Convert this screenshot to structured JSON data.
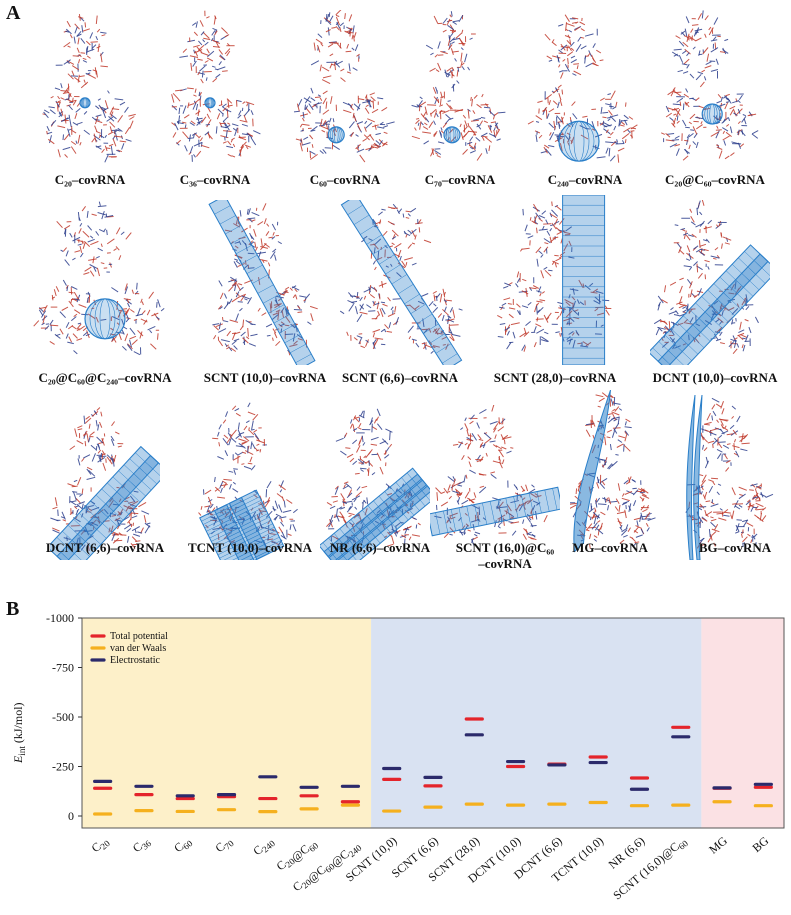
{
  "figure": {
    "panel_a_label": "A",
    "panel_b_label": "B",
    "panel_a": {
      "cells": [
        {
          "caption": "C₂₀–covRNA",
          "molecule": "fullerene-small"
        },
        {
          "caption": "C₃₆–covRNA",
          "molecule": "fullerene-small"
        },
        {
          "caption": "C₆₀–covRNA",
          "molecule": "fullerene-medium"
        },
        {
          "caption": "C₇₀–covRNA",
          "molecule": "fullerene-medium"
        },
        {
          "caption": "C₂₄₀–covRNA",
          "molecule": "fullerene-large"
        },
        {
          "caption": "C₂₀@C₆₀–covRNA",
          "molecule": "onion-fullerene"
        },
        {
          "caption": "C₂₀@C₆₀@C₂₄₀–covRNA",
          "molecule": "onion-fullerene-large"
        },
        {
          "caption": "SCNT (10,0)–covRNA",
          "molecule": "nanotube-diagonal"
        },
        {
          "caption": "SCNT (6,6)–covRNA",
          "molecule": "nanotube-diagonal"
        },
        {
          "caption": "SCNT (28,0)–covRNA",
          "molecule": "nanotube-vertical"
        },
        {
          "caption": "DCNT (10,0)–covRNA",
          "molecule": "nanotube-double"
        },
        {
          "caption": "DCNT (6,6)–covRNA",
          "molecule": "nanotube-double"
        },
        {
          "caption": "TCNT (10,0)–covRNA",
          "molecule": "nanotube-triple"
        },
        {
          "caption": "NR (6,6)–covRNA",
          "molecule": "nanorope"
        },
        {
          "caption": "SCNT (16,0)@C₆₀",
          "caption2": "–covRNA",
          "molecule": "peapod"
        },
        {
          "caption": "MG–covRNA",
          "molecule": "graphene-mono"
        },
        {
          "caption": "BG–covRNA",
          "molecule": "graphene-bi"
        }
      ]
    },
    "colors": {
      "rna_red": "#c0392b",
      "rna_blue": "#2c3e8c",
      "carbon": "#2a7fc9",
      "bg_fullerene": "#fdf0c9",
      "bg_nanotube": "#d9e2f2",
      "bg_graphene": "#fbe1e4",
      "total": "#e4242b",
      "vdw": "#f5b01e",
      "elec": "#2b2a6b"
    }
  },
  "chart_data": {
    "type": "scatter",
    "marker": "dash",
    "title": "",
    "ylabel": "E_int (kJ/mol)",
    "ylabel_main": "E",
    "ylabel_sub": "int",
    "ylabel_unit": " (kJ/mol)",
    "xlabel": "",
    "ylim": [
      0,
      -1000
    ],
    "yticks": [
      {
        "value": 0,
        "label": "0"
      },
      {
        "value": -250,
        "label": "-250"
      },
      {
        "value": -500,
        "label": "-500"
      },
      {
        "value": -750,
        "label": "-750"
      },
      {
        "value": -1000,
        "label": "-1000"
      }
    ],
    "categories": [
      "C20",
      "C36",
      "C60",
      "C70",
      "C240",
      "C20@C60",
      "C20@C60@C240",
      "SCNT (10,0)",
      "SCNT (6,6)",
      "SCNT (28,0)",
      "DCNT (10,0)",
      "DCNT (6,6)",
      "TCNT (10,0)",
      "NR (6,6)",
      "SCNT (16,0)@C60",
      "MG",
      "BG"
    ],
    "category_labels": [
      [
        {
          "t": "C"
        },
        {
          "t": "20",
          "s": 1
        }
      ],
      [
        {
          "t": "C"
        },
        {
          "t": "36",
          "s": 1
        }
      ],
      [
        {
          "t": "C"
        },
        {
          "t": "60",
          "s": 1
        }
      ],
      [
        {
          "t": "C"
        },
        {
          "t": "70",
          "s": 1
        }
      ],
      [
        {
          "t": "C"
        },
        {
          "t": "240",
          "s": 1
        }
      ],
      [
        {
          "t": "C"
        },
        {
          "t": "20",
          "s": 1
        },
        {
          "t": "@C"
        },
        {
          "t": "60",
          "s": 1
        }
      ],
      [
        {
          "t": "C"
        },
        {
          "t": "20",
          "s": 1
        },
        {
          "t": "@C"
        },
        {
          "t": "60",
          "s": 1
        },
        {
          "t": "@C"
        },
        {
          "t": "240",
          "s": 1
        }
      ],
      [
        {
          "t": "SCNT (10,0)"
        }
      ],
      [
        {
          "t": "SCNT (6,6)"
        }
      ],
      [
        {
          "t": "SCNT (28,0)"
        }
      ],
      [
        {
          "t": "DCNT (10,0)"
        }
      ],
      [
        {
          "t": "DCNT (6,6)"
        }
      ],
      [
        {
          "t": "TCNT (10,0)"
        }
      ],
      [
        {
          "t": "NR (6,6)"
        }
      ],
      [
        {
          "t": "SCNT (16,0)@C"
        },
        {
          "t": "60",
          "s": 1
        }
      ],
      [
        {
          "t": "MG"
        }
      ],
      [
        {
          "t": "BG"
        }
      ]
    ],
    "series": [
      {
        "name": "Total potential",
        "color": "#e4242b",
        "values": [
          -140,
          -108,
          -88,
          -98,
          -88,
          -102,
          -72,
          -185,
          -152,
          -490,
          -250,
          -262,
          -298,
          -192,
          -448,
          -140,
          -145
        ]
      },
      {
        "name": "van der Waals",
        "color": "#f5b01e",
        "values": [
          -10,
          -27,
          -23,
          -32,
          -22,
          -36,
          -55,
          -25,
          -45,
          -60,
          -55,
          -60,
          -68,
          -52,
          -55,
          -72,
          -52
        ]
      },
      {
        "name": "Electrostatic",
        "color": "#2b2a6b",
        "values": [
          -175,
          -150,
          -102,
          -108,
          -198,
          -145,
          -150,
          -240,
          -195,
          -410,
          -275,
          -258,
          -270,
          -135,
          -400,
          -142,
          -160
        ]
      }
    ],
    "regions": [
      {
        "name": "fullerenes",
        "from": 0,
        "to": 6,
        "color": "#fdf0c9"
      },
      {
        "name": "nanotubes",
        "from": 7,
        "to": 14,
        "color": "#d9e2f2"
      },
      {
        "name": "graphene",
        "from": 15,
        "to": 16,
        "color": "#fbe1e4"
      }
    ],
    "legend_position": "top-left"
  }
}
